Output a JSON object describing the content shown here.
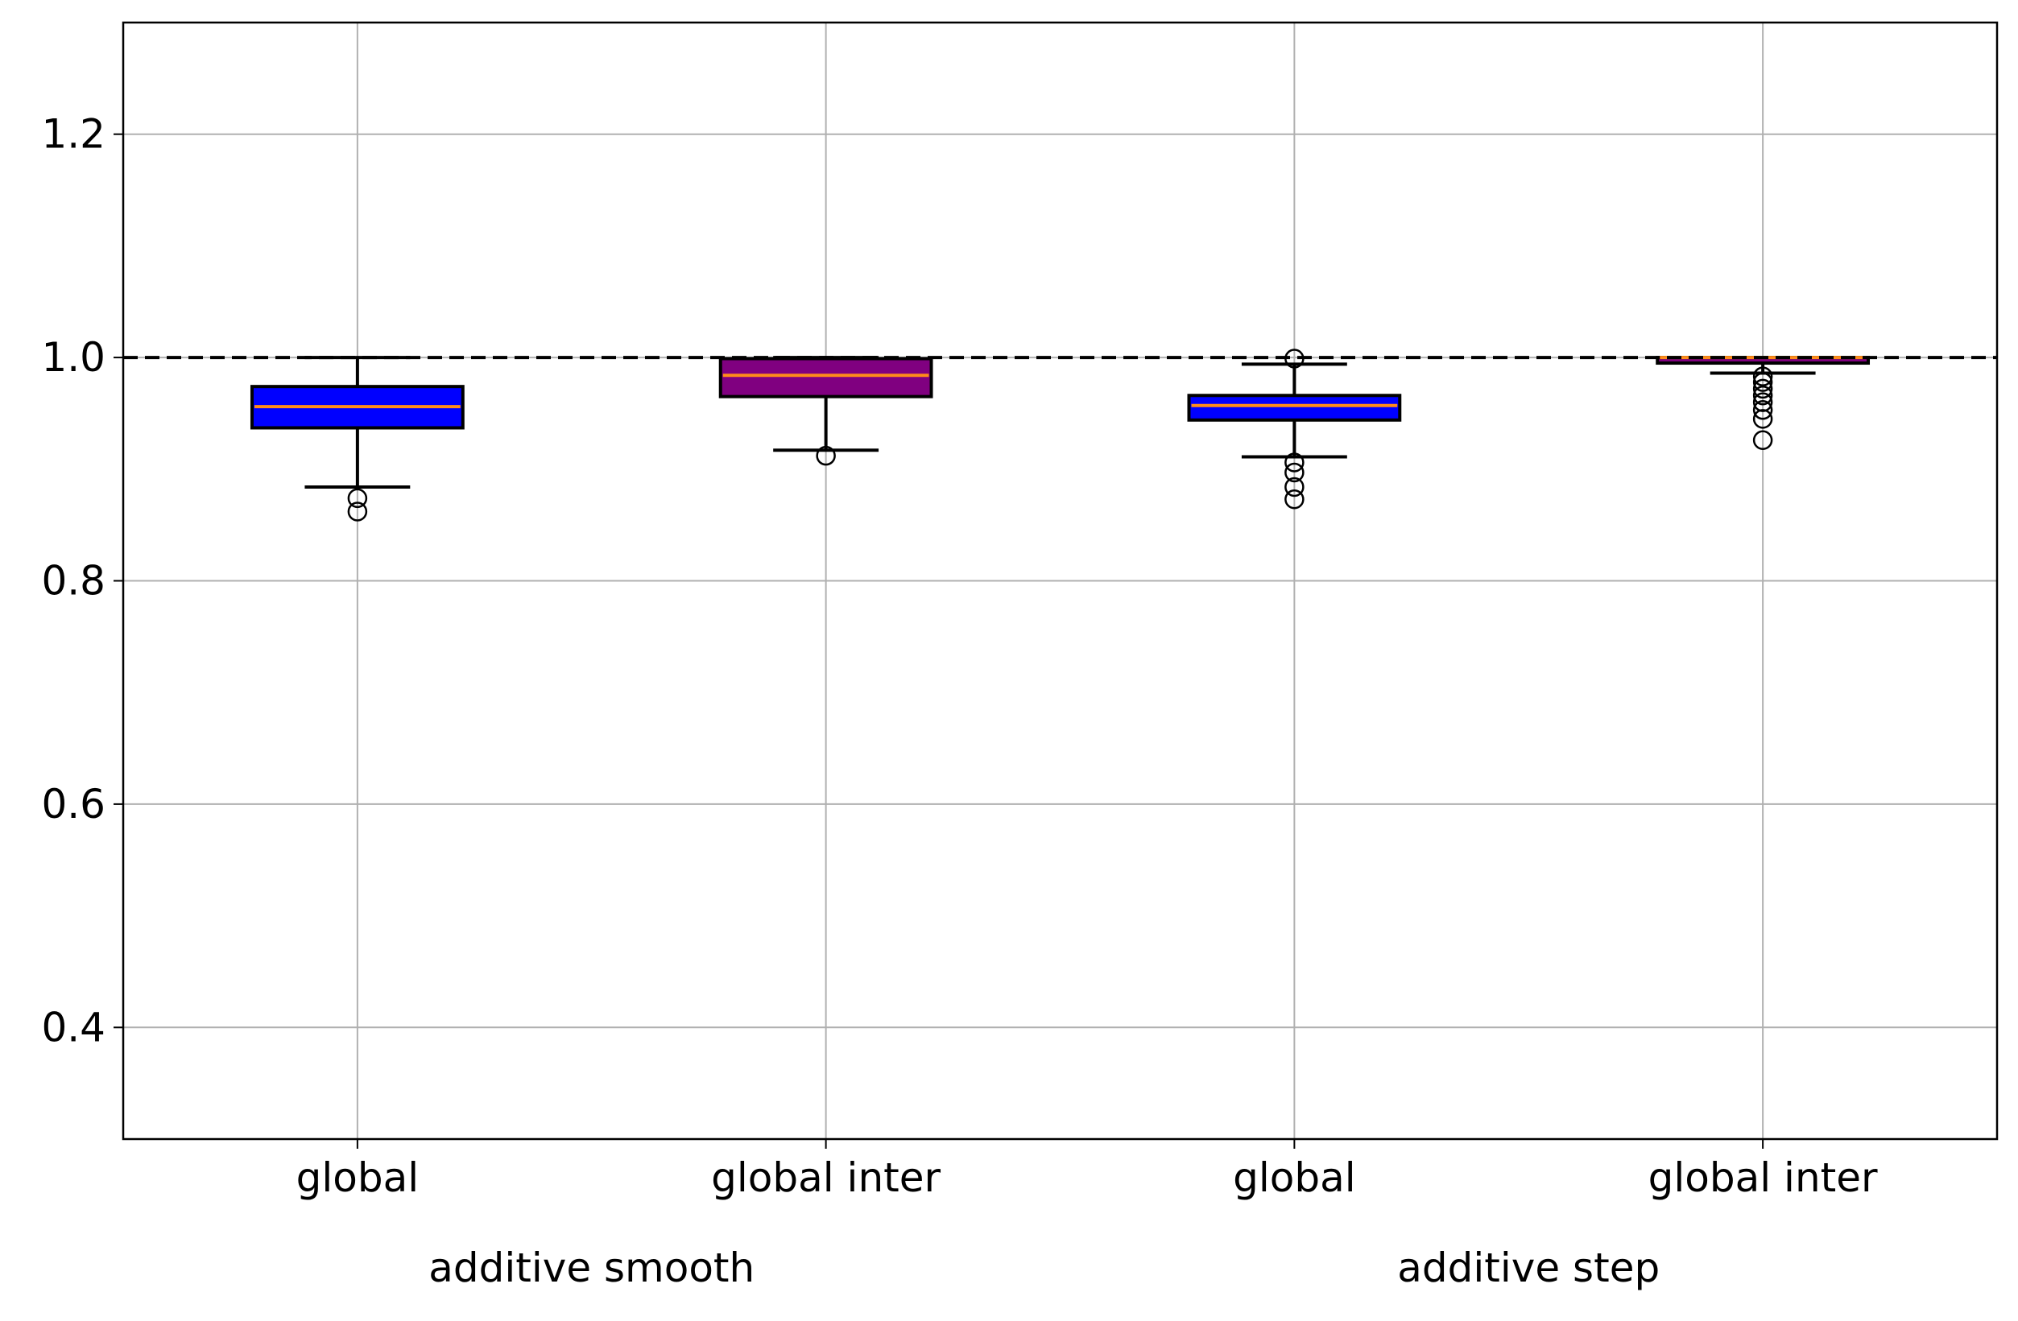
{
  "chart_data": {
    "type": "box",
    "title": "",
    "xlabel": "",
    "ylabel": "",
    "ylim": [
      0.3,
      1.3
    ],
    "yticks": [
      0.4,
      0.6,
      0.8,
      1.0,
      1.2
    ],
    "ytick_labels": [
      "0.4",
      "0.6",
      "0.8",
      "1.0",
      "1.2"
    ],
    "grid": true,
    "reference_line": {
      "y": 1.0,
      "style": "dashed",
      "color": "#000000"
    },
    "median_color": "#ff8c1a",
    "groups": [
      {
        "label": "additive smooth",
        "categories": [
          0,
          1
        ]
      },
      {
        "label": "additive step",
        "categories": [
          2,
          3
        ]
      }
    ],
    "boxes": [
      {
        "label": "global",
        "fill": "#0000ff",
        "q1": 0.937,
        "median": 0.956,
        "q3": 0.974,
        "whisker_low": 0.884,
        "whisker_high": 1.0,
        "outliers": [
          0.874,
          0.862
        ]
      },
      {
        "label": "global inter",
        "fill": "#800080",
        "q1": 0.965,
        "median": 0.984,
        "q3": 0.999,
        "whisker_low": 0.917,
        "whisker_high": 1.0,
        "outliers": [
          0.912
        ]
      },
      {
        "label": "global",
        "fill": "#0000ff",
        "q1": 0.944,
        "median": 0.957,
        "q3": 0.966,
        "whisker_low": 0.911,
        "whisker_high": 0.994,
        "outliers": [
          0.999,
          0.906,
          0.897,
          0.884,
          0.873
        ]
      },
      {
        "label": "global inter",
        "fill": "#800080",
        "q1": 0.995,
        "median": 1.0,
        "q3": 1.0,
        "whisker_low": 0.986,
        "whisker_high": 1.0,
        "outliers": [
          0.983,
          0.978,
          0.972,
          0.966,
          0.96,
          0.953,
          0.945,
          0.926
        ]
      }
    ]
  }
}
